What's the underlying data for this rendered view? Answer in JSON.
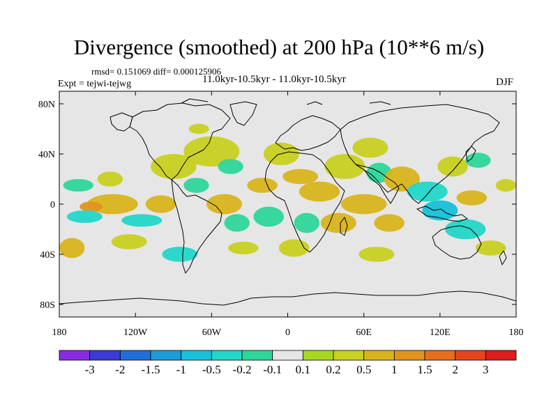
{
  "title": "Divergence (smoothed) at 200 hPa (10**6 m/s)",
  "stats": "rmsd= 0.151069 diff= 0.000125906",
  "experiment": "Expt = tejwi-tejwg",
  "period": "11.0kyr-10.5kyr - 11.0kyr-10.5kyr",
  "season": "DJF",
  "lat_labels": [
    "80N",
    "40N",
    "0",
    "40S",
    "80S"
  ],
  "lon_labels": [
    "180",
    "120W",
    "60W",
    "0",
    "60E",
    "120E",
    "180"
  ],
  "colorbar": {
    "labels": [
      "-3",
      "-2",
      "-1.5",
      "-1",
      "-0.5",
      "-0.2",
      "-0.1",
      "0.1",
      "0.2",
      "0.5",
      "1",
      "1.5",
      "2",
      "3"
    ],
    "colors": [
      "#8a2be2",
      "#3b3bd6",
      "#1e6fd9",
      "#1c9bd8",
      "#18c0d8",
      "#23d6c8",
      "#2ed69a",
      "#e6e6e6",
      "#a6d820",
      "#c8d020",
      "#d8b41c",
      "#e0941c",
      "#e66e1c",
      "#e6441c",
      "#e01c1c"
    ]
  },
  "colors": {
    "land_bg": "#e6e6e6",
    "coast": "#000000"
  },
  "chart_data": {
    "type": "heatmap",
    "title": "Divergence (smoothed) at 200 hPa (10**6 m/s)",
    "x_range": [
      -180,
      180
    ],
    "y_range": [
      -90,
      90
    ],
    "x_ticks": [
      -180,
      -120,
      -60,
      0,
      60,
      120,
      180
    ],
    "y_ticks": [
      80,
      40,
      0,
      -40,
      -80
    ],
    "levels": [
      -3,
      -2,
      -1.5,
      -1,
      -0.5,
      -0.2,
      -0.1,
      0.1,
      0.2,
      0.5,
      1,
      1.5,
      2,
      3
    ],
    "blobs": [
      {
        "lon": -138,
        "lat": 0,
        "rlon": 20,
        "rlat": 8,
        "value": 0.5
      },
      {
        "lon": -155,
        "lat": -2,
        "rlon": 9,
        "rlat": 4,
        "value": 1
      },
      {
        "lon": -160,
        "lat": -10,
        "rlon": 14,
        "rlat": 5,
        "value": -0.5
      },
      {
        "lon": -115,
        "lat": -13,
        "rlon": 16,
        "rlat": 5,
        "value": -0.5
      },
      {
        "lon": -170,
        "lat": -35,
        "rlon": 10,
        "rlat": 8,
        "value": 0.5
      },
      {
        "lon": -125,
        "lat": -30,
        "rlon": 14,
        "rlat": 6,
        "value": 0.2
      },
      {
        "lon": -165,
        "lat": 15,
        "rlon": 12,
        "rlat": 5,
        "value": -0.2
      },
      {
        "lon": -140,
        "lat": 20,
        "rlon": 10,
        "rlat": 6,
        "value": 0.2
      },
      {
        "lon": -100,
        "lat": 0,
        "rlon": 12,
        "rlat": 7,
        "value": 0.5
      },
      {
        "lon": -90,
        "lat": 30,
        "rlon": 18,
        "rlat": 10,
        "value": 0.2
      },
      {
        "lon": -72,
        "lat": 15,
        "rlon": 10,
        "rlat": 6,
        "value": -0.2
      },
      {
        "lon": -60,
        "lat": 42,
        "rlon": 22,
        "rlat": 12,
        "value": 0.2
      },
      {
        "lon": -45,
        "lat": 30,
        "rlon": 10,
        "rlat": 6,
        "value": -0.2
      },
      {
        "lon": -70,
        "lat": 60,
        "rlon": 8,
        "rlat": 4,
        "value": 0.2
      },
      {
        "lon": -50,
        "lat": 0,
        "rlon": 14,
        "rlat": 8,
        "value": 0.5
      },
      {
        "lon": -40,
        "lat": -15,
        "rlon": 10,
        "rlat": 7,
        "value": -0.2
      },
      {
        "lon": -35,
        "lat": -35,
        "rlon": 12,
        "rlat": 5,
        "value": 0.2
      },
      {
        "lon": -85,
        "lat": -40,
        "rlon": 14,
        "rlat": 6,
        "value": -0.5
      },
      {
        "lon": -20,
        "lat": 15,
        "rlon": 12,
        "rlat": 6,
        "value": 0.5
      },
      {
        "lon": -15,
        "lat": -10,
        "rlon": 12,
        "rlat": 8,
        "value": -0.2
      },
      {
        "lon": -5,
        "lat": 40,
        "rlon": 14,
        "rlat": 9,
        "value": 0.2
      },
      {
        "lon": 10,
        "lat": 22,
        "rlon": 14,
        "rlat": 6,
        "value": 0.5
      },
      {
        "lon": 25,
        "lat": 10,
        "rlon": 16,
        "rlat": 8,
        "value": 0.5
      },
      {
        "lon": 15,
        "lat": -15,
        "rlon": 10,
        "rlat": 8,
        "value": -0.2
      },
      {
        "lon": 5,
        "lat": -35,
        "rlon": 12,
        "rlat": 7,
        "value": 0.2
      },
      {
        "lon": 40,
        "lat": -15,
        "rlon": 14,
        "rlat": 8,
        "value": 0.5
      },
      {
        "lon": 45,
        "lat": 30,
        "rlon": 16,
        "rlat": 10,
        "value": 0.2
      },
      {
        "lon": 60,
        "lat": 0,
        "rlon": 18,
        "rlat": 8,
        "value": 0.5
      },
      {
        "lon": 72,
        "lat": 25,
        "rlon": 10,
        "rlat": 8,
        "value": -0.2
      },
      {
        "lon": 65,
        "lat": 45,
        "rlon": 14,
        "rlat": 8,
        "value": 0.2
      },
      {
        "lon": 90,
        "lat": 20,
        "rlon": 14,
        "rlat": 10,
        "value": 0.5
      },
      {
        "lon": 80,
        "lat": -15,
        "rlon": 12,
        "rlat": 7,
        "value": 0.5
      },
      {
        "lon": 70,
        "lat": -40,
        "rlon": 14,
        "rlat": 6,
        "value": 0.2
      },
      {
        "lon": 110,
        "lat": 10,
        "rlon": 16,
        "rlat": 8,
        "value": -0.5
      },
      {
        "lon": 120,
        "lat": -5,
        "rlon": 14,
        "rlat": 8,
        "value": -1
      },
      {
        "lon": 130,
        "lat": 30,
        "rlon": 12,
        "rlat": 8,
        "value": 0.2
      },
      {
        "lon": 150,
        "lat": 35,
        "rlon": 10,
        "rlat": 6,
        "value": -0.2
      },
      {
        "lon": 145,
        "lat": 5,
        "rlon": 12,
        "rlat": 6,
        "value": 0.5
      },
      {
        "lon": 140,
        "lat": -20,
        "rlon": 16,
        "rlat": 8,
        "value": -0.5
      },
      {
        "lon": 160,
        "lat": -35,
        "rlon": 12,
        "rlat": 6,
        "value": 0.2
      },
      {
        "lon": 172,
        "lat": 15,
        "rlon": 8,
        "rlat": 5,
        "value": 0.2
      }
    ]
  }
}
